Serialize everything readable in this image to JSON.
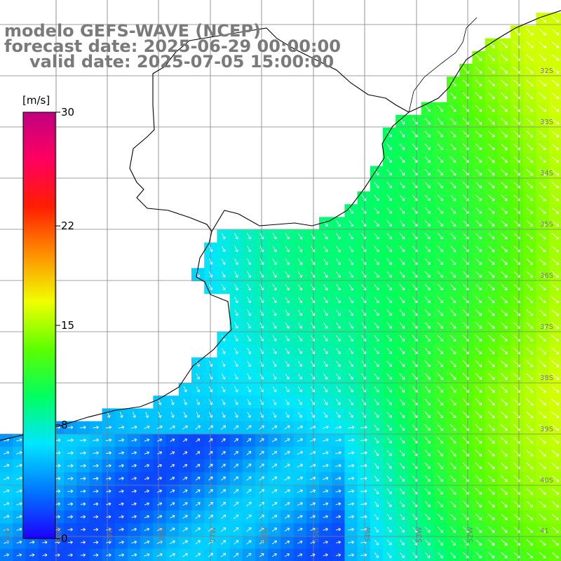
{
  "title": {
    "line1": "modelo GEFS-WAVE (NCEP)",
    "line2": "forecast date: 2025-06-29 00:00:00",
    "line3": "valid date: 2025-07-05 15:00:00"
  },
  "colorbar": {
    "unit": "[m/s]",
    "ticks": [
      {
        "label": "30",
        "value": 30
      },
      {
        "label": "22",
        "value": 22
      },
      {
        "label": "15",
        "value": 15
      },
      {
        "label": "8",
        "value": 8
      },
      {
        "label": "0",
        "value": 0
      }
    ],
    "colors": [
      "#1c00ff",
      "#0077ff",
      "#00e6ff",
      "#00ff60",
      "#5cff00",
      "#f0ff00",
      "#ff9000",
      "#ff1e00",
      "#ff0060",
      "#c00080"
    ]
  },
  "map": {
    "field": "wind speed",
    "ocean_palette": {
      "low": "#1f5cf2",
      "mid": "#14d5ff",
      "high": "#24f23c"
    },
    "land_color": "#ffffff",
    "coast_color": "#000000",
    "grid_color": "#808080",
    "arrow_color": "#ffffff",
    "lat_labels": [
      "32S",
      "33S",
      "34S",
      "35S",
      "36S",
      "37S",
      "38S",
      "39S",
      "40S",
      "41"
    ],
    "lon_labels": [
      "61W",
      "60W",
      "59W",
      "58W",
      "57W",
      "56W",
      "55W",
      "54W",
      "53W",
      "52W"
    ]
  }
}
